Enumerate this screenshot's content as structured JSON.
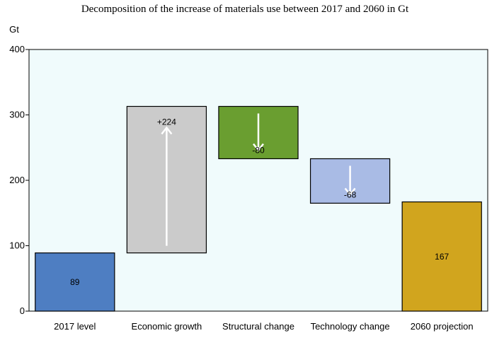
{
  "chart_data": {
    "type": "bar",
    "subtype": "waterfall",
    "title": "Decomposition of the increase of materials use between 2017 and 2060 in Gt",
    "ylabel": "Gt",
    "ylim": [
      0,
      400
    ],
    "yticks": [
      0,
      100,
      200,
      300,
      400
    ],
    "grid": false,
    "background": "#f0fbfc",
    "categories": [
      "2017 level",
      "Economic growth",
      "Structural change",
      "Technology change",
      "2060 projection"
    ],
    "bars": [
      {
        "category": "2017 level",
        "start": 0,
        "end": 89,
        "label": "89",
        "color": "#4e7ec2",
        "arrow": "none"
      },
      {
        "category": "Economic growth",
        "start": 89,
        "end": 313,
        "label": "+224",
        "color": "#cbcbcb",
        "arrow": "up"
      },
      {
        "category": "Structural change",
        "start": 313,
        "end": 233,
        "label": "-80",
        "color": "#6a9e30",
        "arrow": "down"
      },
      {
        "category": "Technology change",
        "start": 233,
        "end": 165,
        "label": "-68",
        "color": "#a9bbe5",
        "arrow": "down"
      },
      {
        "category": "2060 projection",
        "start": 0,
        "end": 167,
        "label": "167",
        "color": "#d1a51e",
        "arrow": "none"
      }
    ]
  }
}
